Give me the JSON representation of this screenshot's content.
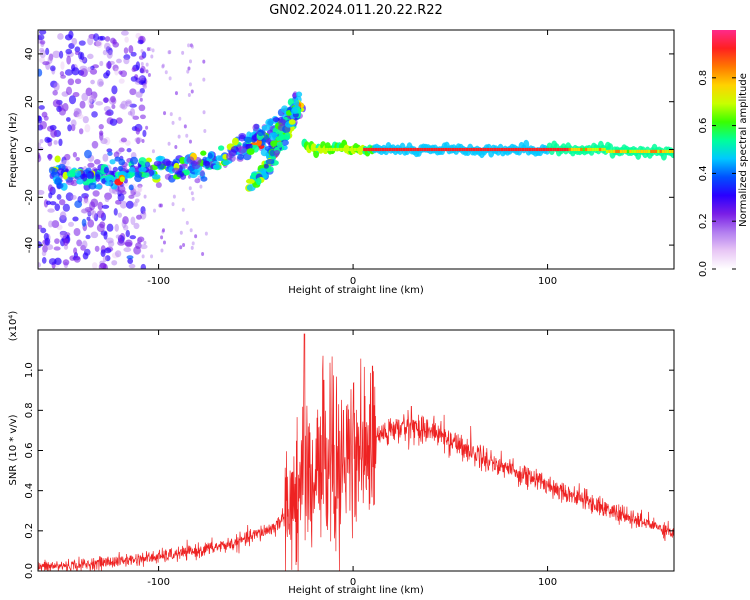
{
  "title": "GN02.2024.011.20.22.R22",
  "chart_data": [
    {
      "type": "heatmap",
      "xlabel": "Height of straight line (km)",
      "ylabel": "Frequency (Hz)",
      "xlim": [
        -162,
        165
      ],
      "ylim": [
        -50,
        50
      ],
      "xticks": [
        -100,
        0,
        100
      ],
      "yticks": [
        -40,
        -20,
        0,
        20,
        40
      ],
      "xtick_labels": [
        "-100",
        "0",
        "100"
      ],
      "ytick_labels": [
        "-40",
        "-20",
        "0",
        "20",
        "40"
      ],
      "colorbar": {
        "label": "Normalized spectral amplitude",
        "range": [
          0,
          1
        ],
        "ticks": [
          0.0,
          0.2,
          0.4,
          0.6,
          0.8
        ],
        "tick_labels": [
          "0.0",
          "0.2",
          "0.4",
          "0.6",
          "0.8"
        ],
        "colors": [
          "#ffffff",
          "#e8c6f5",
          "#b27ef0",
          "#7a1ee6",
          "#2a00ff",
          "#0050ff",
          "#00c8ff",
          "#00ff9a",
          "#39ff00",
          "#c8ff00",
          "#ffd200",
          "#ff7800",
          "#ff2020",
          "#ff2a8a"
        ]
      },
      "features": [
        {
          "name": "diffuse scatter",
          "x": [
            -162,
            -110
          ],
          "y": [
            -50,
            50
          ]
        },
        {
          "name": "rising branch",
          "points": [
            [
              -155,
              -10
            ],
            [
              -135,
              -12
            ],
            [
              -115,
              -10
            ],
            [
              -95,
              -8
            ],
            [
              -80,
              -7
            ],
            [
              -65,
              -3
            ],
            [
              -50,
              4
            ],
            [
              -40,
              8
            ],
            [
              -32,
              14
            ],
            [
              -28,
              20
            ]
          ]
        },
        {
          "name": "second branch",
          "points": [
            [
              -52,
              -14
            ],
            [
              -45,
              -8
            ],
            [
              -40,
              -1
            ],
            [
              -35,
              6
            ],
            [
              -30,
              14
            ],
            [
              -28,
              18
            ]
          ]
        },
        {
          "name": "steady line",
          "points": [
            [
              -25,
              1
            ],
            [
              0,
              0
            ],
            [
              50,
              0
            ],
            [
              100,
              0
            ],
            [
              165,
              -1
            ]
          ]
        }
      ]
    },
    {
      "type": "line",
      "xlabel": "Height of straight line (km)",
      "ylabel": "SNR (10 * v/v)",
      "ylabel_multiplier": "(x10⁴)",
      "xlim": [
        -162,
        165
      ],
      "ylim": [
        0,
        1.2
      ],
      "xticks": [
        -100,
        0,
        100
      ],
      "yticks": [
        0.0,
        0.2,
        0.4,
        0.6,
        0.8,
        1.0
      ],
      "xtick_labels": [
        "-100",
        "0",
        "100"
      ],
      "ytick_labels": [
        "0.0",
        "0.2",
        "0.4",
        "0.6",
        "0.8",
        "1.0"
      ],
      "color": "#ee2222",
      "envelope": {
        "x": [
          -162,
          -140,
          -120,
          -100,
          -80,
          -60,
          -50,
          -40,
          -35,
          -30,
          -25,
          -20,
          -15,
          -10,
          -5,
          0,
          5,
          10,
          15,
          20,
          30,
          40,
          50,
          60,
          70,
          80,
          90,
          100,
          110,
          120,
          130,
          140,
          150,
          160,
          165
        ],
        "y": [
          0.02,
          0.03,
          0.05,
          0.07,
          0.1,
          0.14,
          0.18,
          0.22,
          0.28,
          0.36,
          0.46,
          0.52,
          0.55,
          0.54,
          0.52,
          0.6,
          0.64,
          0.66,
          0.68,
          0.7,
          0.72,
          0.7,
          0.65,
          0.6,
          0.55,
          0.51,
          0.47,
          0.43,
          0.39,
          0.35,
          0.31,
          0.27,
          0.24,
          0.21,
          0.19
        ]
      },
      "peaks": [
        [
          -25,
          1.18
        ],
        [
          -15,
          0.95
        ],
        [
          10,
          1.02
        ],
        [
          -5,
          0.8
        ],
        [
          30,
          0.82
        ]
      ]
    }
  ]
}
